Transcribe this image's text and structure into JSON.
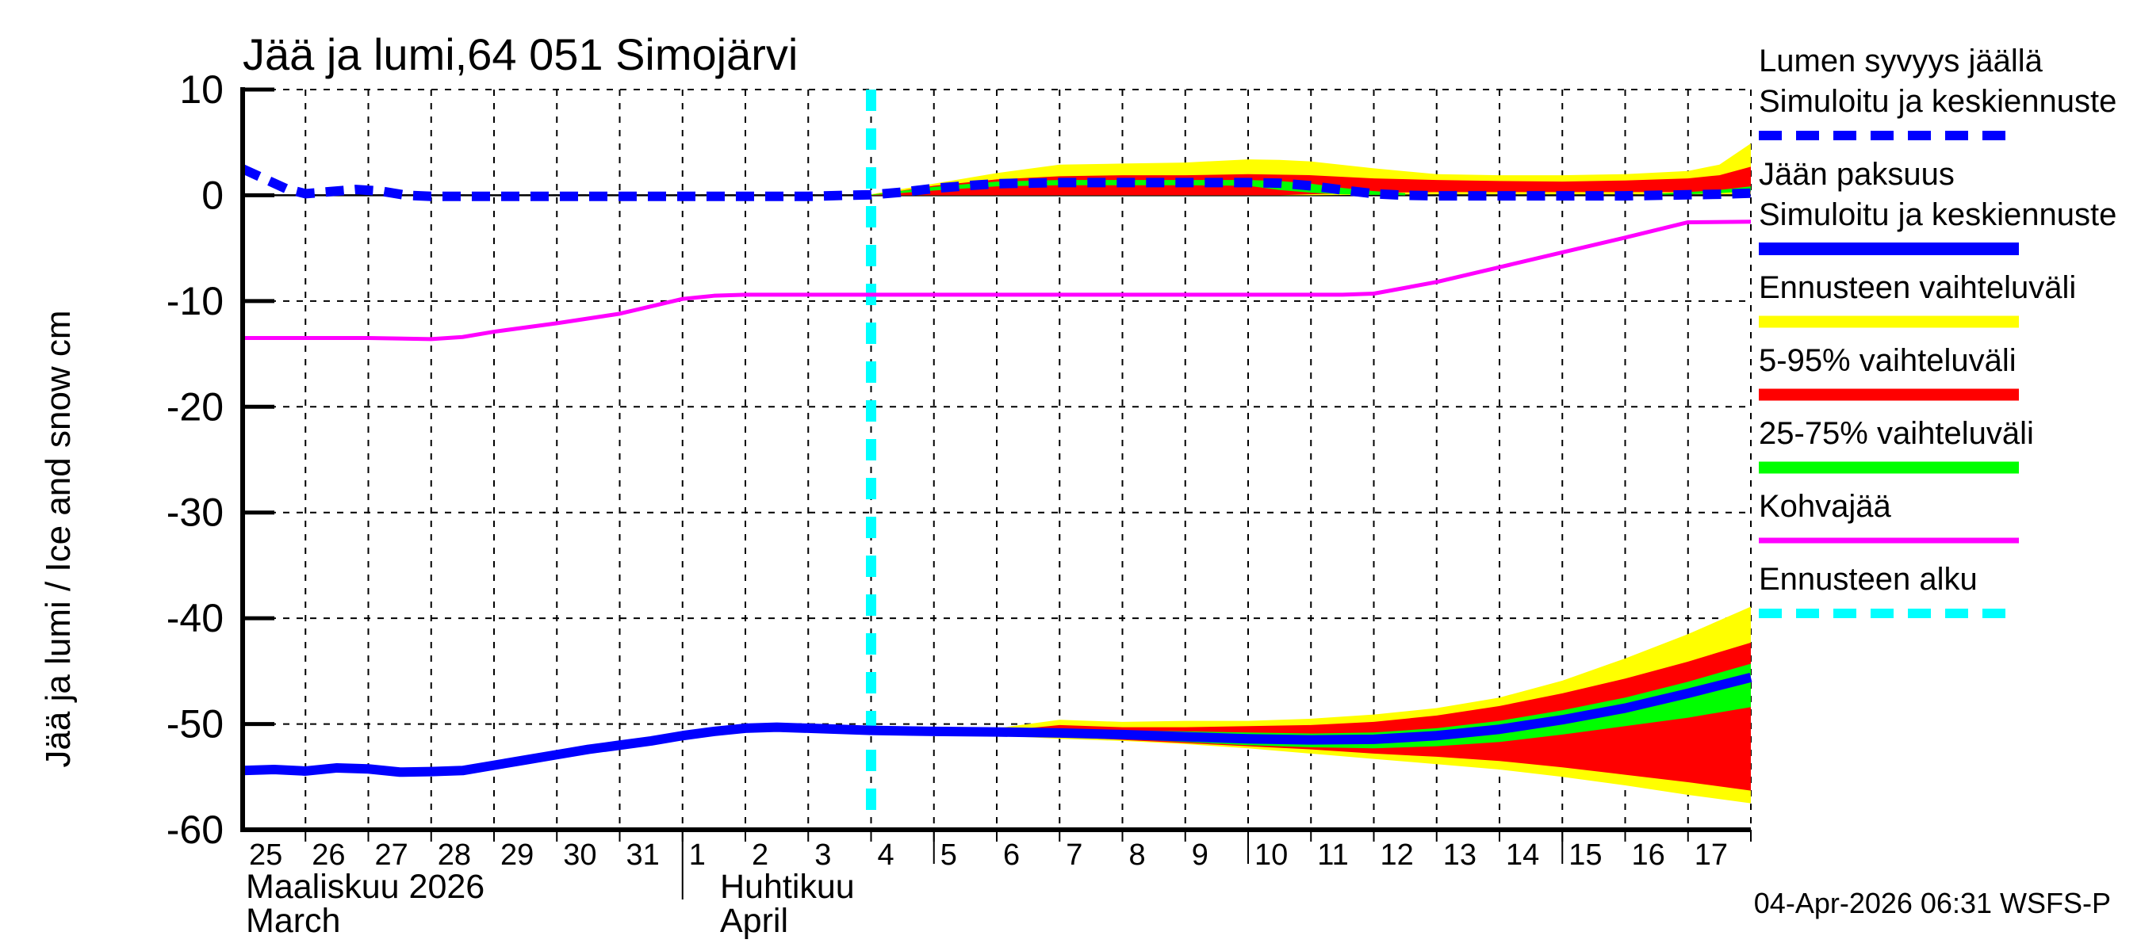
{
  "footer": {
    "timestamp": "04-Apr-2026 06:31 WSFS-P"
  },
  "chart_data": {
    "type": "line",
    "title": "Jää ja lumi,64 051 Simojärvi",
    "ylabel": "Jää ja lumi / Ice and snow    cm",
    "xlabel": "",
    "ylim": [
      -60,
      10
    ],
    "grid": true,
    "legend_position": "right-outside",
    "y_ticks": [
      {
        "value": 10,
        "label": "10"
      },
      {
        "value": 0,
        "label": "0"
      },
      {
        "value": -10,
        "label": "-10"
      },
      {
        "value": -20,
        "label": "-20"
      },
      {
        "value": -30,
        "label": "-30"
      },
      {
        "value": -40,
        "label": "-40"
      },
      {
        "value": -50,
        "label": "-50"
      },
      {
        "value": -60,
        "label": "-60"
      }
    ],
    "x_domain_days": 24,
    "x_day_ticks": [
      {
        "t": 0,
        "label": "25"
      },
      {
        "t": 1,
        "label": "26"
      },
      {
        "t": 2,
        "label": "27"
      },
      {
        "t": 3,
        "label": "28"
      },
      {
        "t": 4,
        "label": "29"
      },
      {
        "t": 5,
        "label": "30"
      },
      {
        "t": 6,
        "label": "31"
      },
      {
        "t": 7,
        "label": "1"
      },
      {
        "t": 8,
        "label": "2"
      },
      {
        "t": 9,
        "label": "3"
      },
      {
        "t": 10,
        "label": "4"
      },
      {
        "t": 11,
        "label": "5"
      },
      {
        "t": 12,
        "label": "6"
      },
      {
        "t": 13,
        "label": "7"
      },
      {
        "t": 14,
        "label": "8"
      },
      {
        "t": 15,
        "label": "9"
      },
      {
        "t": 16,
        "label": "10"
      },
      {
        "t": 17,
        "label": "11"
      },
      {
        "t": 18,
        "label": "12"
      },
      {
        "t": 19,
        "label": "13"
      },
      {
        "t": 20,
        "label": "14"
      },
      {
        "t": 21,
        "label": "15"
      },
      {
        "t": 22,
        "label": "16"
      },
      {
        "t": 23,
        "label": "17"
      }
    ],
    "long_tick_ts": [
      11,
      16,
      21
    ],
    "month_boundary_t": 7,
    "months": [
      {
        "label_fi": "Maaliskuu 2026",
        "label_en": "March",
        "start_t": 0
      },
      {
        "label_fi": "Huhtikuu",
        "label_en": "April",
        "start_t": 7
      }
    ],
    "forecast_start_t": 10,
    "colors": {
      "median": "#0000ff",
      "full_range": "#ffff00",
      "range_5_95": "#ff0000",
      "range_25_75": "#00ff00",
      "kohvajaa": "#ff00ff",
      "forecast_start": "#00ffff",
      "axis": "#000000"
    },
    "series": {
      "snow_depth_median": {
        "label": "Lumen syvyys jäällä — Simuloitu ja keskiennuste",
        "unit": "cm",
        "points": [
          [
            0,
            2.5
          ],
          [
            0.7,
            0.6
          ],
          [
            1,
            0.15
          ],
          [
            1.3,
            0.3
          ],
          [
            1.8,
            0.55
          ],
          [
            2.2,
            0.4
          ],
          [
            2.6,
            0.0
          ],
          [
            3,
            -0.1
          ],
          [
            4,
            -0.1
          ],
          [
            5,
            -0.1
          ],
          [
            6,
            -0.1
          ],
          [
            7,
            -0.1
          ],
          [
            8,
            -0.1
          ],
          [
            9,
            -0.1
          ],
          [
            9.6,
            0.0
          ],
          [
            10,
            0.05
          ],
          [
            10.5,
            0.3
          ],
          [
            11,
            0.65
          ],
          [
            11.5,
            0.9
          ],
          [
            12,
            1.1
          ],
          [
            13,
            1.2
          ],
          [
            14,
            1.2
          ],
          [
            15,
            1.2
          ],
          [
            16,
            1.2
          ],
          [
            16.5,
            1.15
          ],
          [
            17,
            0.9
          ],
          [
            17.5,
            0.5
          ],
          [
            18,
            0.15
          ],
          [
            18.5,
            0.0
          ],
          [
            19,
            -0.05
          ],
          [
            20,
            -0.05
          ],
          [
            21,
            -0.05
          ],
          [
            22,
            -0.05
          ],
          [
            23,
            0.05
          ],
          [
            23.5,
            0.1
          ],
          [
            24,
            0.2
          ]
        ]
      },
      "snow_full_range": {
        "label": "Ennusteen vaihteluväli (lumi)",
        "x": [
          10,
          10.5,
          11,
          12,
          13,
          14,
          15,
          16,
          16.5,
          17,
          18,
          19,
          20,
          21,
          22,
          23,
          23.5,
          24
        ],
        "hi": [
          0.1,
          0.6,
          1.1,
          2.1,
          2.9,
          3.0,
          3.1,
          3.4,
          3.35,
          3.2,
          2.55,
          2.0,
          1.9,
          1.9,
          2.0,
          2.3,
          2.9,
          4.9
        ],
        "lo": [
          0,
          0,
          0,
          0,
          0,
          0,
          0,
          0,
          0,
          0,
          0.05,
          0.1,
          0.1,
          0.1,
          0.1,
          0.1,
          0.1,
          0.1
        ]
      },
      "snow_5_95": {
        "label": "5-95% vaihteluväli (lumi)",
        "x": [
          10,
          10.5,
          11,
          12,
          13,
          14,
          15,
          16,
          16.5,
          17,
          18,
          19,
          20,
          21,
          22,
          23,
          23.5,
          24
        ],
        "hi": [
          0.05,
          0.45,
          0.9,
          1.5,
          1.8,
          1.9,
          1.9,
          2.0,
          1.95,
          1.9,
          1.6,
          1.45,
          1.35,
          1.3,
          1.4,
          1.6,
          1.9,
          2.7
        ],
        "lo": [
          0,
          0,
          0,
          0,
          0,
          0,
          0,
          0,
          0,
          0.1,
          0.25,
          0.3,
          0.3,
          0.3,
          0.3,
          0.3,
          0.3,
          0.35
        ]
      },
      "snow_25_75_segments": [
        {
          "x": [
            10,
            11,
            12,
            13,
            14,
            15,
            16,
            16.5,
            17,
            17.5,
            18,
            18.5
          ],
          "hi": [
            0.05,
            0.8,
            1.3,
            1.45,
            1.45,
            1.45,
            1.45,
            1.35,
            1.1,
            0.7,
            0.4,
            0.2
          ],
          "lo": [
            0,
            0.45,
            0.85,
            0.95,
            0.95,
            0.95,
            0.9,
            0.5,
            0.25,
            0.1,
            0.05,
            0
          ]
        },
        {
          "x": [
            22.5,
            23,
            23.5,
            24
          ],
          "hi": [
            0.15,
            0.3,
            0.5,
            0.85
          ],
          "lo": [
            0.05,
            0.1,
            0.2,
            0.4
          ]
        }
      ],
      "ice_thickness_median": {
        "label": "Jään paksuus — Simuloitu ja keskiennuste",
        "unit": "cm",
        "points": [
          [
            0,
            -54.4
          ],
          [
            0.5,
            -54.3
          ],
          [
            1,
            -54.45
          ],
          [
            1.5,
            -54.15
          ],
          [
            2,
            -54.25
          ],
          [
            2.5,
            -54.55
          ],
          [
            3,
            -54.5
          ],
          [
            3.5,
            -54.4
          ],
          [
            4,
            -53.9
          ],
          [
            4.5,
            -53.4
          ],
          [
            5,
            -52.9
          ],
          [
            5.5,
            -52.4
          ],
          [
            6,
            -52.0
          ],
          [
            6.5,
            -51.6
          ],
          [
            7,
            -51.1
          ],
          [
            7.5,
            -50.7
          ],
          [
            8,
            -50.4
          ],
          [
            8.5,
            -50.3
          ],
          [
            9,
            -50.4
          ],
          [
            9.5,
            -50.5
          ],
          [
            10,
            -50.6
          ],
          [
            11,
            -50.7
          ],
          [
            12,
            -50.75
          ],
          [
            13,
            -50.85
          ],
          [
            14,
            -51.0
          ],
          [
            15,
            -51.2
          ],
          [
            16,
            -51.4
          ],
          [
            17,
            -51.5
          ],
          [
            18,
            -51.45
          ],
          [
            19,
            -51.1
          ],
          [
            20,
            -50.5
          ],
          [
            21,
            -49.6
          ],
          [
            22,
            -48.5
          ],
          [
            23,
            -47.1
          ],
          [
            24,
            -45.6
          ]
        ]
      },
      "ice_full_range": {
        "label": "Ennusteen vaihteluväli (jää)",
        "x": [
          12,
          13,
          14,
          15,
          16,
          17,
          18,
          19,
          20,
          21,
          22,
          23,
          24
        ],
        "hi": [
          -50.4,
          -49.6,
          -49.8,
          -49.7,
          -49.7,
          -49.5,
          -49.1,
          -48.5,
          -47.5,
          -45.9,
          -43.8,
          -41.5,
          -38.9
        ],
        "lo": [
          -51.1,
          -51.4,
          -51.6,
          -51.9,
          -52.3,
          -52.8,
          -53.3,
          -53.8,
          -54.3,
          -55.0,
          -55.8,
          -56.7,
          -57.5
        ]
      },
      "ice_5_95": {
        "label": "5-95% vaihteluväli (jää)",
        "x": [
          12.5,
          13,
          14,
          15,
          16,
          17,
          18,
          19,
          20,
          21,
          22,
          23,
          24
        ],
        "hi": [
          -50.4,
          -50.1,
          -50.3,
          -50.3,
          -50.2,
          -50.1,
          -49.8,
          -49.2,
          -48.3,
          -47.1,
          -45.7,
          -44.1,
          -42.3
        ],
        "lo": [
          -51.0,
          -51.2,
          -51.5,
          -51.8,
          -52.1,
          -52.4,
          -52.8,
          -53.1,
          -53.5,
          -54.1,
          -54.8,
          -55.5,
          -56.3
        ]
      },
      "ice_25_75": {
        "label": "25-75% vaihteluväli (jää)",
        "x": [
          13,
          14,
          15,
          16,
          17,
          18,
          19,
          20,
          21,
          22,
          23,
          24
        ],
        "hi": [
          -50.5,
          -50.6,
          -50.7,
          -50.8,
          -50.9,
          -50.8,
          -50.4,
          -49.7,
          -48.7,
          -47.5,
          -46.0,
          -44.3
        ],
        "lo": [
          -51.2,
          -51.4,
          -51.7,
          -52.0,
          -52.2,
          -52.3,
          -52.1,
          -51.7,
          -51.0,
          -50.2,
          -49.4,
          -48.4
        ]
      },
      "kohvajaa": {
        "label": "Kohvajää",
        "unit": "cm",
        "points": [
          [
            0,
            -13.5
          ],
          [
            1,
            -13.5
          ],
          [
            2,
            -13.5
          ],
          [
            3,
            -13.6
          ],
          [
            3.5,
            -13.4
          ],
          [
            4,
            -12.9
          ],
          [
            5,
            -12.1
          ],
          [
            6,
            -11.2
          ],
          [
            6.5,
            -10.5
          ],
          [
            7,
            -9.8
          ],
          [
            7.5,
            -9.5
          ],
          [
            8,
            -9.4
          ],
          [
            10,
            -9.4
          ],
          [
            12,
            -9.4
          ],
          [
            14,
            -9.4
          ],
          [
            16,
            -9.4
          ],
          [
            17.5,
            -9.4
          ],
          [
            18,
            -9.3
          ],
          [
            19,
            -8.2
          ],
          [
            20,
            -6.8
          ],
          [
            21,
            -5.4
          ],
          [
            22,
            -4.0
          ],
          [
            23,
            -2.55
          ],
          [
            24,
            -2.5
          ]
        ]
      }
    },
    "legend": [
      {
        "name": "snow-depth-median",
        "lines": [
          "Lumen syvyys jäällä",
          "Simuloitu ja keskiennuste"
        ],
        "color": "#0000ff",
        "style": "dashed",
        "stroke_width": 12
      },
      {
        "name": "ice-thickness-median",
        "lines": [
          "Jään paksuus",
          "Simuloitu ja keskiennuste"
        ],
        "color": "#0000ff",
        "style": "solid",
        "stroke_width": 16
      },
      {
        "name": "forecast-range",
        "lines": [
          "Ennusteen vaihteluväli"
        ],
        "color": "#ffff00",
        "style": "solid",
        "stroke_width": 15
      },
      {
        "name": "range-5-95",
        "lines": [
          "5-95% vaihteluväli"
        ],
        "color": "#ff0000",
        "style": "solid",
        "stroke_width": 15
      },
      {
        "name": "range-25-75",
        "lines": [
          "25-75% vaihteluväli"
        ],
        "color": "#00ff00",
        "style": "solid",
        "stroke_width": 15
      },
      {
        "name": "kohvajaa",
        "lines": [
          "Kohvajää"
        ],
        "color": "#ff00ff",
        "style": "solid",
        "stroke_width": 7
      },
      {
        "name": "forecast-start",
        "lines": [
          "Ennusteen alku"
        ],
        "color": "#00ffff",
        "style": "dashed",
        "stroke_width": 12
      }
    ]
  }
}
